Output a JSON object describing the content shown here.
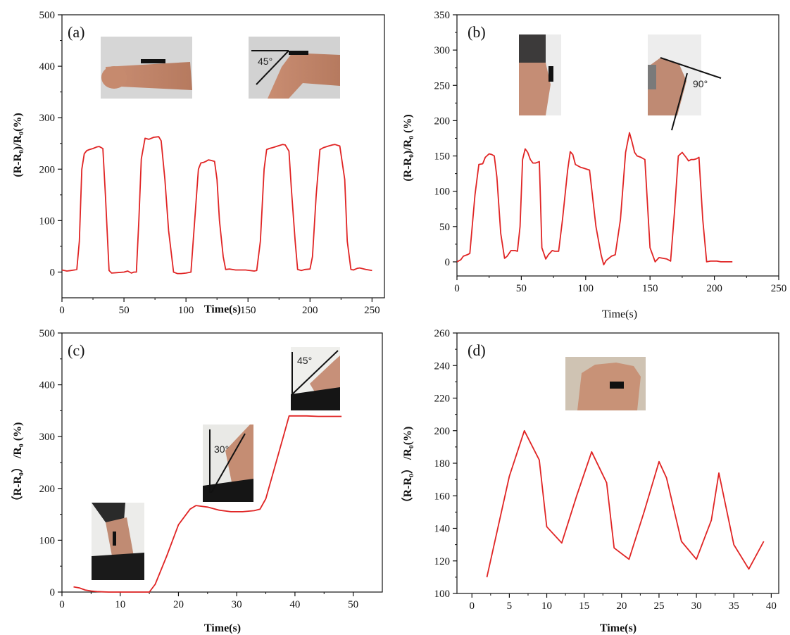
{
  "figure": {
    "panels": [
      {
        "label": "(a)",
        "xlabel": "Time(s)",
        "ylabel": "(R-R₀)/R₀(%)",
        "photos": [
          {
            "name": "wrist-straight-photo"
          },
          {
            "name": "wrist-bent-photo",
            "caption": "45°"
          }
        ]
      },
      {
        "label": "(b)",
        "xlabel": "Time(s)",
        "ylabel": "(R-R₀)/R₀ (%)",
        "photos": [
          {
            "name": "knee-straight-photo"
          },
          {
            "name": "knee-bent-photo",
            "caption": "90°"
          }
        ]
      },
      {
        "label": "(c)",
        "xlabel": "Time(s)",
        "ylabel": "（R-R₀） /R₀ (%)",
        "photos": [
          {
            "name": "neck-straight-photo"
          },
          {
            "name": "neck-30-photo",
            "caption": "30°"
          },
          {
            "name": "neck-45-photo",
            "caption": "45°"
          }
        ]
      },
      {
        "label": "(d)",
        "xlabel": "Time(s)",
        "ylabel": "（R-R₀） /R₀(%)",
        "photos": [
          {
            "name": "chest-photo"
          }
        ]
      }
    ]
  },
  "colors": {
    "line": "#e02424",
    "axis": "#111111"
  },
  "chart_data": [
    {
      "type": "line",
      "title": "",
      "xlabel": "Time(s)",
      "ylabel": "(R-R₀)/R₀(%)",
      "xlim": [
        0,
        260
      ],
      "ylim": [
        -50,
        500
      ],
      "xticks": [
        0,
        50,
        100,
        150,
        200,
        250
      ],
      "yticks": [
        0,
        100,
        200,
        300,
        400,
        500
      ],
      "series": [
        {
          "x": [
            0,
            4,
            7,
            10,
            12,
            14,
            16,
            18,
            20,
            22,
            25,
            28,
            30,
            33,
            35,
            38,
            40,
            45,
            50,
            53,
            56,
            58,
            60,
            62,
            64,
            67,
            70,
            74,
            78,
            80,
            83,
            86,
            90,
            93,
            96,
            100,
            104,
            107,
            110,
            112,
            114,
            116,
            118,
            120,
            123,
            125,
            127,
            130,
            132,
            135,
            140,
            148,
            155,
            157,
            160,
            163,
            165,
            167,
            170,
            174,
            178,
            180,
            183,
            185,
            188,
            190,
            193,
            196,
            200,
            202,
            205,
            208,
            211,
            215,
            218,
            220,
            224,
            228,
            230,
            233,
            235,
            238,
            240,
            245,
            250
          ],
          "y": [
            4,
            2,
            3,
            4,
            5,
            60,
            200,
            230,
            236,
            238,
            240,
            243,
            244,
            240,
            150,
            3,
            -2,
            -1,
            0,
            2,
            -2,
            0,
            0,
            100,
            220,
            260,
            258,
            262,
            263,
            255,
            180,
            80,
            0,
            -3,
            -3,
            -2,
            0,
            100,
            200,
            212,
            213,
            215,
            218,
            217,
            215,
            180,
            100,
            30,
            5,
            6,
            4,
            4,
            2,
            3,
            60,
            200,
            238,
            240,
            242,
            245,
            248,
            247,
            235,
            160,
            60,
            5,
            3,
            5,
            6,
            30,
            150,
            238,
            242,
            245,
            247,
            248,
            245,
            180,
            60,
            5,
            4,
            7,
            8,
            5,
            3
          ]
        }
      ]
    },
    {
      "type": "line",
      "title": "",
      "xlabel": "Time(s)",
      "ylabel": "(R-R₀)/R₀ (%)",
      "xlim": [
        0,
        250
      ],
      "ylim": [
        -20,
        350
      ],
      "xticks": [
        0,
        50,
        100,
        150,
        200,
        250
      ],
      "yticks": [
        0,
        50,
        100,
        150,
        200,
        250,
        300,
        350
      ],
      "series": [
        {
          "x": [
            0,
            3,
            5,
            8,
            10,
            14,
            17,
            20,
            22,
            25,
            27,
            29,
            31,
            34,
            37,
            39,
            42,
            45,
            47,
            49,
            51,
            53,
            55,
            57,
            59,
            61,
            64,
            66,
            69,
            71,
            74,
            76,
            79,
            82,
            86,
            88,
            90,
            92,
            94,
            96,
            98,
            103,
            108,
            112,
            114,
            116,
            118,
            120,
            123,
            127,
            131,
            134,
            136,
            138,
            140,
            143,
            146,
            150,
            154,
            157,
            160,
            163,
            166,
            169,
            172,
            175,
            178,
            180,
            182,
            184,
            186,
            188,
            191,
            194,
            197,
            199,
            202,
            205,
            208,
            211,
            214
          ],
          "y": [
            0,
            3,
            8,
            10,
            12,
            95,
            138,
            139,
            148,
            153,
            152,
            150,
            120,
            40,
            5,
            8,
            16,
            16,
            15,
            50,
            145,
            160,
            155,
            145,
            140,
            140,
            142,
            20,
            4,
            10,
            16,
            15,
            15,
            60,
            130,
            156,
            152,
            138,
            136,
            134,
            133,
            130,
            50,
            10,
            -4,
            2,
            5,
            8,
            10,
            60,
            155,
            183,
            170,
            155,
            150,
            148,
            145,
            20,
            0,
            6,
            5,
            4,
            1,
            70,
            150,
            155,
            148,
            143,
            145,
            145,
            146,
            148,
            60,
            0,
            1,
            1,
            1,
            0,
            0,
            0,
            0
          ]
        }
      ]
    },
    {
      "type": "line",
      "title": "",
      "xlabel": "Time(s)",
      "ylabel": "（R-R₀） /R₀ (%)",
      "xlim": [
        0,
        55
      ],
      "ylim": [
        0,
        500
      ],
      "xticks": [
        0,
        10,
        20,
        30,
        40,
        50
      ],
      "yticks": [
        0,
        100,
        200,
        300,
        400,
        500
      ],
      "series": [
        {
          "x": [
            2,
            3,
            4,
            5,
            6,
            8,
            10,
            12,
            14,
            15,
            16,
            18,
            20,
            22,
            23,
            25,
            27,
            29,
            31,
            33,
            34,
            35,
            36,
            38,
            39,
            40,
            42,
            44,
            46,
            48
          ],
          "y": [
            10,
            8,
            4,
            2,
            1,
            0,
            0,
            0,
            0,
            0,
            15,
            70,
            130,
            160,
            167,
            164,
            158,
            155,
            155,
            157,
            160,
            180,
            220,
            300,
            340,
            340,
            340,
            339,
            339,
            339
          ]
        }
      ]
    },
    {
      "type": "line",
      "title": "",
      "xlabel": "Time(s)",
      "ylabel": "（R-R₀） /R₀(%)",
      "xlim": [
        -2,
        41
      ],
      "ylim": [
        100,
        260
      ],
      "xticks": [
        0,
        5,
        10,
        15,
        20,
        25,
        30,
        35,
        40
      ],
      "yticks": [
        100,
        120,
        140,
        160,
        180,
        200,
        220,
        240,
        260
      ],
      "series": [
        {
          "x": [
            2,
            5,
            7,
            9,
            10,
            12,
            14,
            16,
            18,
            19,
            21,
            23,
            25,
            26,
            28,
            30,
            32,
            33,
            35,
            37,
            39
          ],
          "y": [
            110,
            172,
            200,
            182,
            141,
            131,
            160,
            187,
            168,
            128,
            121,
            150,
            181,
            171,
            132,
            121,
            145,
            174,
            130,
            115,
            132
          ]
        }
      ]
    }
  ]
}
